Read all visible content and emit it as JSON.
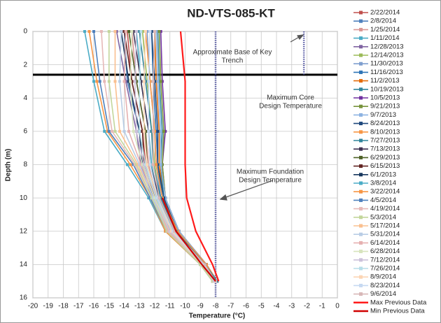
{
  "chart_data": {
    "type": "line",
    "title": "ND-VTS-085-KT",
    "x_label": "Temperature (°C)",
    "y_label": "Depth (m)",
    "depths": [
      0,
      3,
      6,
      8,
      10,
      12,
      14,
      15
    ],
    "xlim": [
      -20,
      0
    ],
    "xticks": [
      -20,
      -19,
      -18,
      -17,
      -16,
      -15,
      -14,
      -13,
      -12,
      -11,
      -10,
      -9,
      -8,
      -7,
      -6,
      -5,
      -4,
      -3,
      -2,
      -1,
      0
    ],
    "ylim": [
      0,
      16
    ],
    "yticks": [
      0,
      2,
      4,
      6,
      8,
      10,
      12,
      14,
      16
    ],
    "y_inverted": true,
    "grid": true,
    "series": [
      {
        "name": "2/22/2014",
        "color": "#c0504d",
        "values": [
          -13.8,
          -13.5,
          -12.8,
          -12.6,
          -12.0,
          -11.0,
          -9.0,
          -8.2
        ]
      },
      {
        "name": "2/8/2014",
        "color": "#4f81bd",
        "values": [
          -14.0,
          -13.8,
          -13.0,
          -12.8,
          -12.1,
          -11.1,
          -9.0,
          -8.2
        ]
      },
      {
        "name": "1/25/2014",
        "color": "#d99694",
        "values": [
          -13.5,
          -13.2,
          -12.6,
          -12.4,
          -11.9,
          -10.9,
          -8.9,
          -8.1
        ]
      },
      {
        "name": "1/11/2014",
        "color": "#4bacc6",
        "values": [
          -13.2,
          -12.9,
          -12.4,
          -12.2,
          -11.8,
          -10.8,
          -8.9,
          -8.1
        ]
      },
      {
        "name": "12/28/2013",
        "color": "#8064a2",
        "values": [
          -14.5,
          -13.9,
          -13.2,
          -12.9,
          -12.2,
          -11.2,
          -9.0,
          -8.2
        ]
      },
      {
        "name": "12/14/2013",
        "color": "#9bbb59",
        "values": [
          -12.8,
          -12.5,
          -12.2,
          -12.0,
          -11.7,
          -10.8,
          -8.8,
          -8.1
        ]
      },
      {
        "name": "11/30/2013",
        "color": "#7f9fcf",
        "values": [
          -12.5,
          -12.3,
          -12.0,
          -11.9,
          -11.6,
          -10.7,
          -8.8,
          -8.0
        ]
      },
      {
        "name": "11/16/2013",
        "color": "#2e75b6",
        "values": [
          -12.2,
          -12.1,
          -11.9,
          -11.8,
          -11.5,
          -10.6,
          -8.7,
          -8.0
        ]
      },
      {
        "name": "11/2/2013",
        "color": "#e46c0a",
        "values": [
          -12.0,
          -11.9,
          -11.7,
          -11.7,
          -11.4,
          -10.5,
          -8.7,
          -8.0
        ]
      },
      {
        "name": "10/19/2013",
        "color": "#31859c",
        "values": [
          -11.8,
          -11.7,
          -11.5,
          -11.6,
          -11.4,
          -10.5,
          -8.7,
          -8.0
        ]
      },
      {
        "name": "10/5/2013",
        "color": "#7030a0",
        "values": [
          -11.6,
          -11.5,
          -11.3,
          -11.5,
          -11.3,
          -10.4,
          -8.6,
          -7.9
        ]
      },
      {
        "name": "9/21/2013",
        "color": "#77933c",
        "values": [
          -11.7,
          -11.6,
          -11.4,
          -11.5,
          -11.3,
          -10.4,
          -8.6,
          -7.9
        ]
      },
      {
        "name": "9/7/2013",
        "color": "#8db3e2",
        "values": [
          -11.9,
          -11.8,
          -11.6,
          -11.6,
          -11.3,
          -10.4,
          -8.6,
          -7.9
        ]
      },
      {
        "name": "8/24/2013",
        "color": "#1f497d",
        "values": [
          -12.2,
          -12.0,
          -11.8,
          -11.8,
          -11.4,
          -10.5,
          -8.6,
          -7.9
        ]
      },
      {
        "name": "8/10/2013",
        "color": "#f79646",
        "values": [
          -12.6,
          -12.3,
          -12.0,
          -11.9,
          -11.5,
          -10.5,
          -8.6,
          -7.9
        ]
      },
      {
        "name": "7/27/2013",
        "color": "#31859c",
        "values": [
          -13.0,
          -12.6,
          -12.2,
          -12.1,
          -11.6,
          -10.6,
          -8.7,
          -7.9
        ]
      },
      {
        "name": "7/13/2013",
        "color": "#403151",
        "values": [
          -13.4,
          -12.9,
          -12.4,
          -12.3,
          -11.7,
          -10.7,
          -8.7,
          -8.0
        ]
      },
      {
        "name": "6/29/2013",
        "color": "#4f6228",
        "values": [
          -13.7,
          -13.2,
          -12.6,
          -12.5,
          -11.8,
          -10.8,
          -8.8,
          -8.0
        ]
      },
      {
        "name": "6/15/2013",
        "color": "#632523",
        "values": [
          -14.0,
          -13.5,
          -12.8,
          -12.7,
          -11.9,
          -10.9,
          -8.8,
          -8.0
        ]
      },
      {
        "name": "6/1/2013",
        "color": "#17375e",
        "values": [
          -14.2,
          -13.7,
          -13.0,
          -12.8,
          -12.0,
          -10.9,
          -8.8,
          -8.0
        ]
      },
      {
        "name": "3/8/2014",
        "color": "#4bacc6",
        "values": [
          -16.6,
          -16.0,
          -15.3,
          -13.8,
          -12.4,
          -11.3,
          -9.0,
          -8.2
        ]
      },
      {
        "name": "3/22/2014",
        "color": "#f79646",
        "values": [
          -16.3,
          -15.8,
          -15.1,
          -13.6,
          -12.3,
          -11.3,
          -9.0,
          -8.2
        ]
      },
      {
        "name": "4/5/2014",
        "color": "#4f81bd",
        "values": [
          -16.0,
          -15.6,
          -15.0,
          -13.4,
          -12.3,
          -11.2,
          -9.0,
          -8.2
        ]
      },
      {
        "name": "4/19/2014",
        "color": "#e6b9b8",
        "values": [
          -15.5,
          -15.3,
          -14.8,
          -13.3,
          -12.2,
          -11.2,
          -9.0,
          -8.2
        ]
      },
      {
        "name": "5/3/2014",
        "color": "#c3d69b",
        "values": [
          -15.0,
          -15.0,
          -14.6,
          -13.2,
          -12.2,
          -11.2,
          -9.0,
          -8.2
        ]
      },
      {
        "name": "5/17/2014",
        "color": "#fac090",
        "values": [
          -14.6,
          -14.6,
          -14.3,
          -13.1,
          -12.1,
          -11.1,
          -8.9,
          -8.1
        ]
      },
      {
        "name": "5/31/2014",
        "color": "#b9cde5",
        "values": [
          -14.2,
          -14.3,
          -14.0,
          -13.0,
          -12.1,
          -11.1,
          -8.9,
          -8.1
        ]
      },
      {
        "name": "6/14/2014",
        "color": "#e6b0b0",
        "values": [
          -13.9,
          -14.0,
          -13.7,
          -12.9,
          -12.0,
          -11.1,
          -8.9,
          -8.1
        ]
      },
      {
        "name": "6/28/2014",
        "color": "#d7e4bd",
        "values": [
          -13.5,
          -13.6,
          -13.4,
          -12.8,
          -12.0,
          -11.0,
          -8.9,
          -8.1
        ]
      },
      {
        "name": "7/12/2014",
        "color": "#ccc1da",
        "values": [
          -13.2,
          -13.3,
          -13.2,
          -12.7,
          -11.9,
          -11.0,
          -8.8,
          -8.1
        ]
      },
      {
        "name": "7/26/2014",
        "color": "#b7dee8",
        "values": [
          -12.9,
          -13.0,
          -13.0,
          -12.6,
          -11.9,
          -10.9,
          -8.8,
          -8.0
        ]
      },
      {
        "name": "8/9/2014",
        "color": "#fcd5b5",
        "values": [
          -12.6,
          -12.7,
          -12.7,
          -12.5,
          -11.8,
          -10.9,
          -8.8,
          -8.0
        ]
      },
      {
        "name": "8/23/2014",
        "color": "#c6d9f1",
        "values": [
          -12.3,
          -12.4,
          -12.4,
          -12.3,
          -11.8,
          -10.8,
          -8.8,
          -8.0
        ]
      },
      {
        "name": "9/6/2014",
        "color": "#d8b8b8",
        "values": [
          -12.0,
          -12.1,
          -12.1,
          -12.1,
          -11.7,
          -10.7,
          -8.7,
          -8.0
        ]
      },
      {
        "name": "Max Previous Data",
        "color": "#ff1a1a",
        "values": [
          -10.3,
          -10.0,
          -10.0,
          -10.0,
          -9.9,
          -9.3,
          -8.2,
          -7.8
        ]
      },
      {
        "name": "Min Previous Data",
        "color": "#d00000",
        "values": [
          null,
          null,
          null,
          null,
          -11.5,
          -10.6,
          -8.9,
          -8.0
        ]
      }
    ],
    "reference_lines": [
      {
        "axis": "y",
        "value": 2.6,
        "color": "#000000"
      },
      {
        "axis": "x",
        "value": -8,
        "color": "#5b5ea6"
      },
      {
        "axis": "x",
        "value": -2.2,
        "color": "#5b5ea6",
        "end": 2.6
      }
    ],
    "annotations": [
      {
        "lines": [
          "Approximate Base of Key",
          "Trench"
        ]
      },
      {
        "lines": [
          "Maximum Core",
          "Design Temperature"
        ]
      },
      {
        "lines": [
          "Maximum Foundation",
          "Design Temperature"
        ]
      }
    ]
  }
}
